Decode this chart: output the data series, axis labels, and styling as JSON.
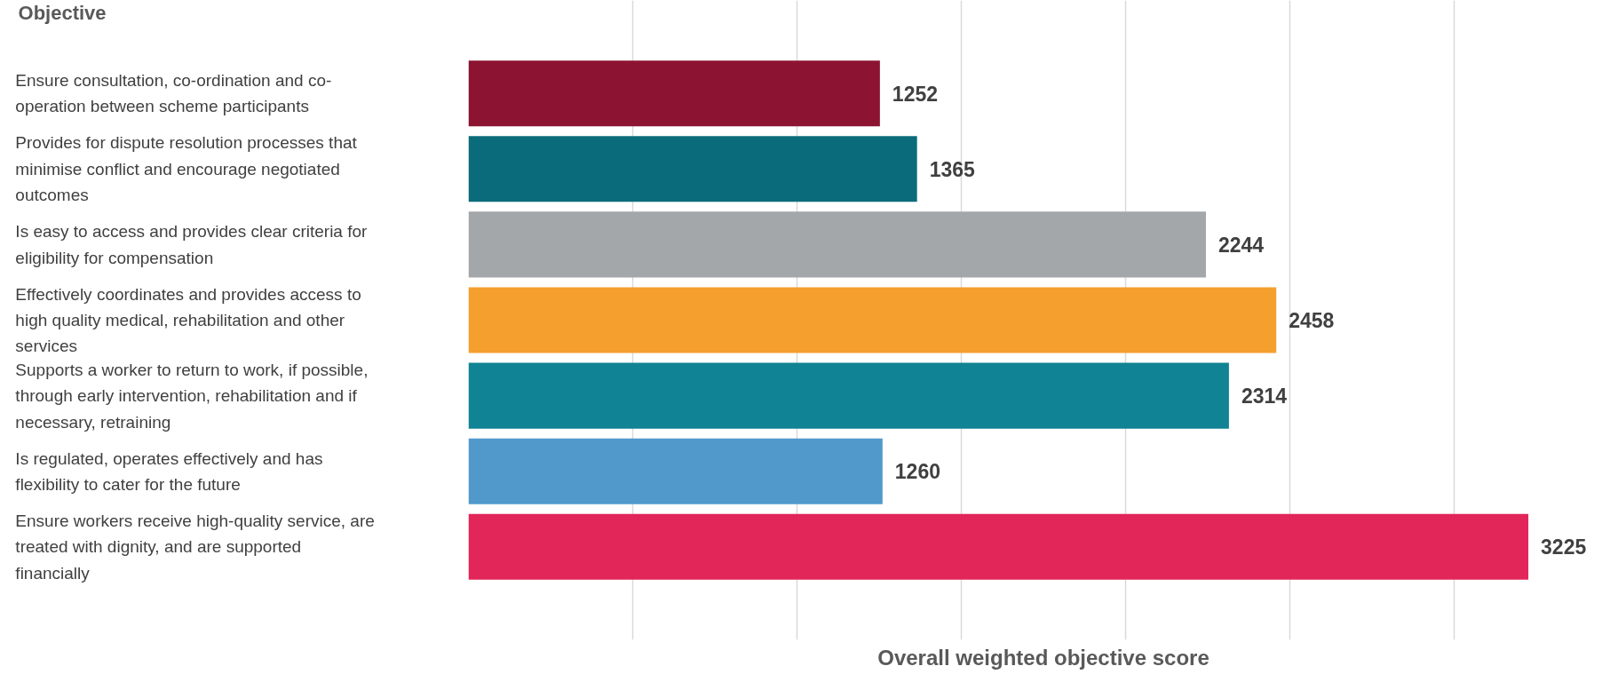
{
  "chart_data": {
    "type": "bar",
    "orientation": "horizontal",
    "annotations": [
      "Objective"
    ],
    "xlabel": "Overall weighted objective score",
    "categories": [
      "Ensure consultation, co-ordination and co-operation between scheme participants",
      "Provides for dispute resolution processes that minimise conflict and encourage negotiated outcomes",
      "Is easy to access and provides clear criteria for eligibility for compensation",
      "Effectively coordinates and provides access to high quality medical, rehabilitation and other services",
      "Supports a worker to return to work, if possible, through early intervention, rehabilitation and if necessary, retraining",
      "Is regulated, operates effectively and has flexibility to cater for the future",
      "Ensure workers receive high-quality service, are treated with dignity, and are supported financially"
    ],
    "values": [
      1252,
      1365,
      2244,
      2458,
      2314,
      1260,
      3225
    ],
    "colors": [
      "#8c1432",
      "#0a6c7a",
      "#a4a7aa",
      "#f59f2e",
      "#108394",
      "#5199cb",
      "#e2265a"
    ],
    "tick_labels": "y",
    "grid": "x",
    "data_labels": true
  }
}
